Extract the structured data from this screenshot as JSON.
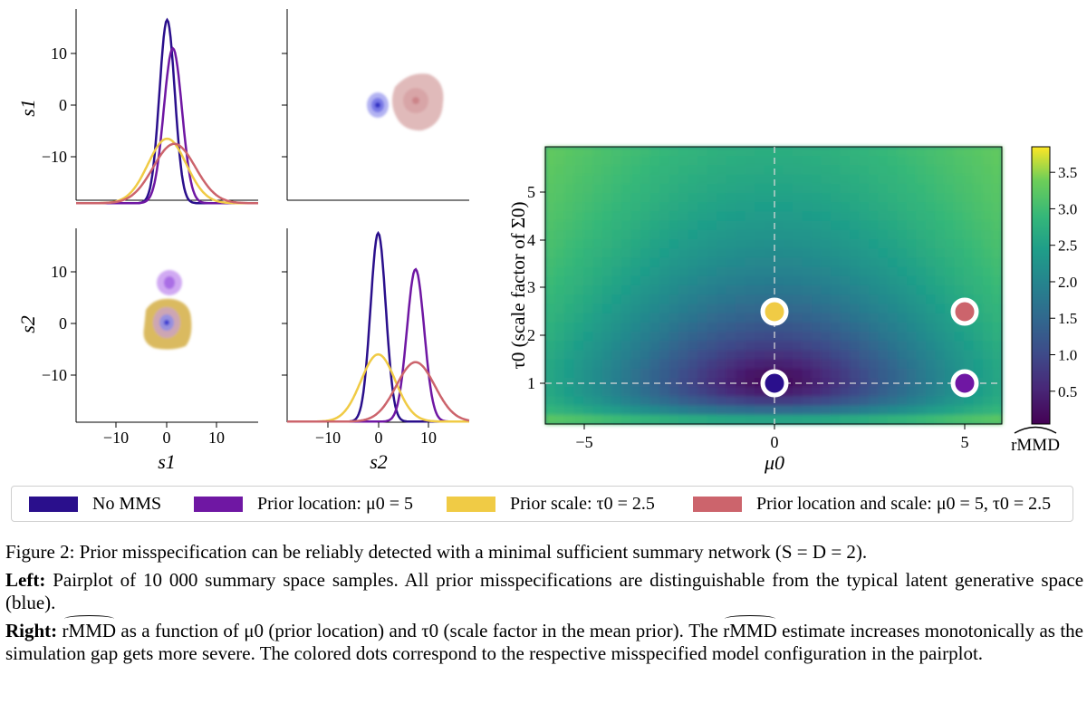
{
  "chart_data": [
    {
      "type": "line",
      "panel": "top-left",
      "ylabel": "s1",
      "yticks": [
        "10",
        "0",
        "−10"
      ],
      "ylim": [
        -19,
        18
      ],
      "xlim": [
        -19,
        19
      ],
      "series": [
        {
          "name": "No MMS",
          "color": "#2a0f8c",
          "mean": 0.0,
          "sd": 1.6,
          "peak": 16.5
        },
        {
          "name": "Prior location: μ0 = 5",
          "color": "#6f17a3",
          "mean": 1.2,
          "sd": 1.9,
          "peak": 11.0
        },
        {
          "name": "Prior scale: τ0 = 2.5",
          "color": "#f0cb45",
          "mean": 0.0,
          "sd": 4.0,
          "peak": -6.5
        },
        {
          "name": "Prior location and scale: μ0 = 5, τ0 = 2.5",
          "color": "#cc646c",
          "mean": 1.5,
          "sd": 4.4,
          "peak": -7.5
        }
      ]
    },
    {
      "type": "scatter",
      "panel": "top-right",
      "clouds": [
        {
          "name": "No MMS",
          "color": "#5c5ce0",
          "x": 0.0,
          "y": 0.0,
          "sx": 2.0,
          "sy": 2.5
        },
        {
          "name": "Prior location and scale: μ0 = 5, τ0 = 2.5",
          "color": "#d9a6a8",
          "x": 7.5,
          "y": 0.5,
          "sx": 5.0,
          "sy": 5.5
        }
      ]
    },
    {
      "type": "scatter",
      "panel": "bottom-left",
      "ylabel": "s2",
      "xlabel": "s1",
      "yticks": [
        "10",
        "0",
        "−10"
      ],
      "xticks": [
        "−10",
        "0",
        "10"
      ],
      "clouds": [
        {
          "name": "Prior scale: τ0 = 2.5",
          "color": "#d9b24a",
          "x": 0.2,
          "y": 0.0,
          "sx": 4.5,
          "sy": 5.0
        },
        {
          "name": "No MMS",
          "color": "#8080e8",
          "x": 0.0,
          "y": 0.0,
          "sx": 2.0,
          "sy": 2.3
        },
        {
          "name": "Prior location: μ0 = 5",
          "color": "#b86ee0",
          "x": 0.8,
          "y": 8.0,
          "sx": 2.0,
          "sy": 2.5
        }
      ]
    },
    {
      "type": "line",
      "panel": "bottom-right",
      "xlabel": "s2",
      "xticks": [
        "−10",
        "0",
        "10"
      ],
      "xlim": [
        -19,
        19
      ],
      "series": [
        {
          "name": "No MMS",
          "color": "#2a0f8c",
          "mean": 0.0,
          "sd": 1.6,
          "peak": 17.5
        },
        {
          "name": "Prior location: μ0 = 5",
          "color": "#6f17a3",
          "mean": 7.8,
          "sd": 1.8,
          "peak": 10.5
        },
        {
          "name": "Prior scale: τ0 = 2.5",
          "color": "#f0cb45",
          "mean": 0.0,
          "sd": 3.6,
          "peak": -6.0
        },
        {
          "name": "Prior location and scale: μ0 = 5, τ0 = 2.5",
          "color": "#cc646c",
          "mean": 7.8,
          "sd": 4.0,
          "peak": -7.5
        }
      ]
    },
    {
      "type": "heatmap",
      "panel": "right",
      "xlabel": "μ0",
      "ylabel": "τ0 (scale factor of Σ0)",
      "xlim": [
        -6,
        6
      ],
      "ylim": [
        0.1,
        5.9
      ],
      "xticks": [
        -5,
        0,
        5
      ],
      "yticks": [
        1,
        2,
        3,
        4,
        5
      ],
      "colorbar": {
        "label": "rMMD",
        "ticks": [
          "0.5",
          "1.0",
          "1.5",
          "2.0",
          "2.5",
          "3.0",
          "3.5"
        ],
        "range": [
          0.05,
          3.85
        ]
      },
      "reference_lines": {
        "x": 0,
        "y": 1
      },
      "points": [
        {
          "x": 0,
          "y": 1,
          "color": "#2a0f8c"
        },
        {
          "x": 5,
          "y": 1,
          "color": "#6f17a3"
        },
        {
          "x": 0,
          "y": 2.5,
          "color": "#f0cb45"
        },
        {
          "x": 5,
          "y": 2.5,
          "color": "#cc646c"
        }
      ]
    }
  ],
  "legend": [
    {
      "label": "No MMS",
      "color": "#2a0f8c"
    },
    {
      "label": "Prior location: μ0 = 5",
      "color": "#6f17a3"
    },
    {
      "label": "Prior scale: τ0 = 2.5",
      "color": "#f0cb45"
    },
    {
      "label": "Prior location and scale: μ0 = 5, τ0 = 2.5",
      "color": "#cc646c"
    }
  ],
  "caption": {
    "figure_title": "Figure 2: Prior misspecification can be reliably detected with a minimal sufficient summary network (S = D = 2).",
    "left_head": "Left:",
    "left_body": "Pairplot of 10 000 summary space samples. All prior misspecifications are distinguishable from the typical latent generative space (blue).",
    "right_head": "Right:",
    "right_term": "rMMD",
    "right_body_1": " as a function of μ0 (prior location) and τ0 (scale factor in the mean prior). The ",
    "right_term_2": "rMMD",
    "right_body_2": " estimate increases monotonically as the simulation gap gets more severe. The colored dots correspond to the respective misspecified model configuration in the pairplot."
  }
}
